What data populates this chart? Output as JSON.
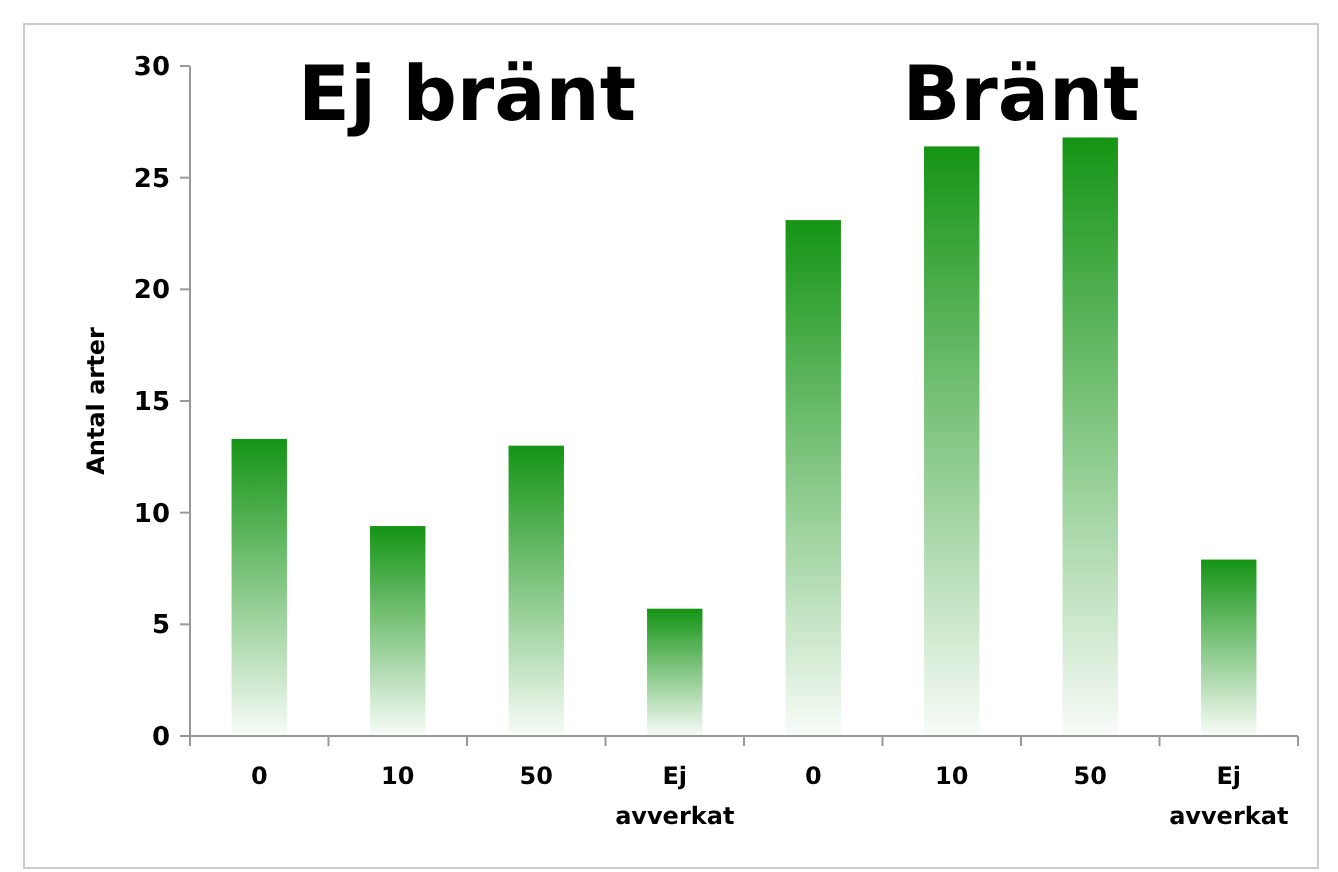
{
  "chart_data": {
    "type": "bar",
    "ylabel": "Antal arter",
    "categories": [
      "0",
      "10",
      "50",
      "Ej avverkat",
      "0",
      "10",
      "50",
      "Ej avverkat"
    ],
    "values": [
      13.3,
      9.4,
      13.0,
      5.7,
      23.1,
      26.4,
      26.8,
      7.9
    ],
    "color": "#149414",
    "ylim": [
      0,
      30
    ],
    "yticks": [
      0,
      5,
      10,
      15,
      20,
      25,
      30
    ],
    "grid": false,
    "annotations": [
      "Ej bränt",
      "Bränt"
    ]
  }
}
